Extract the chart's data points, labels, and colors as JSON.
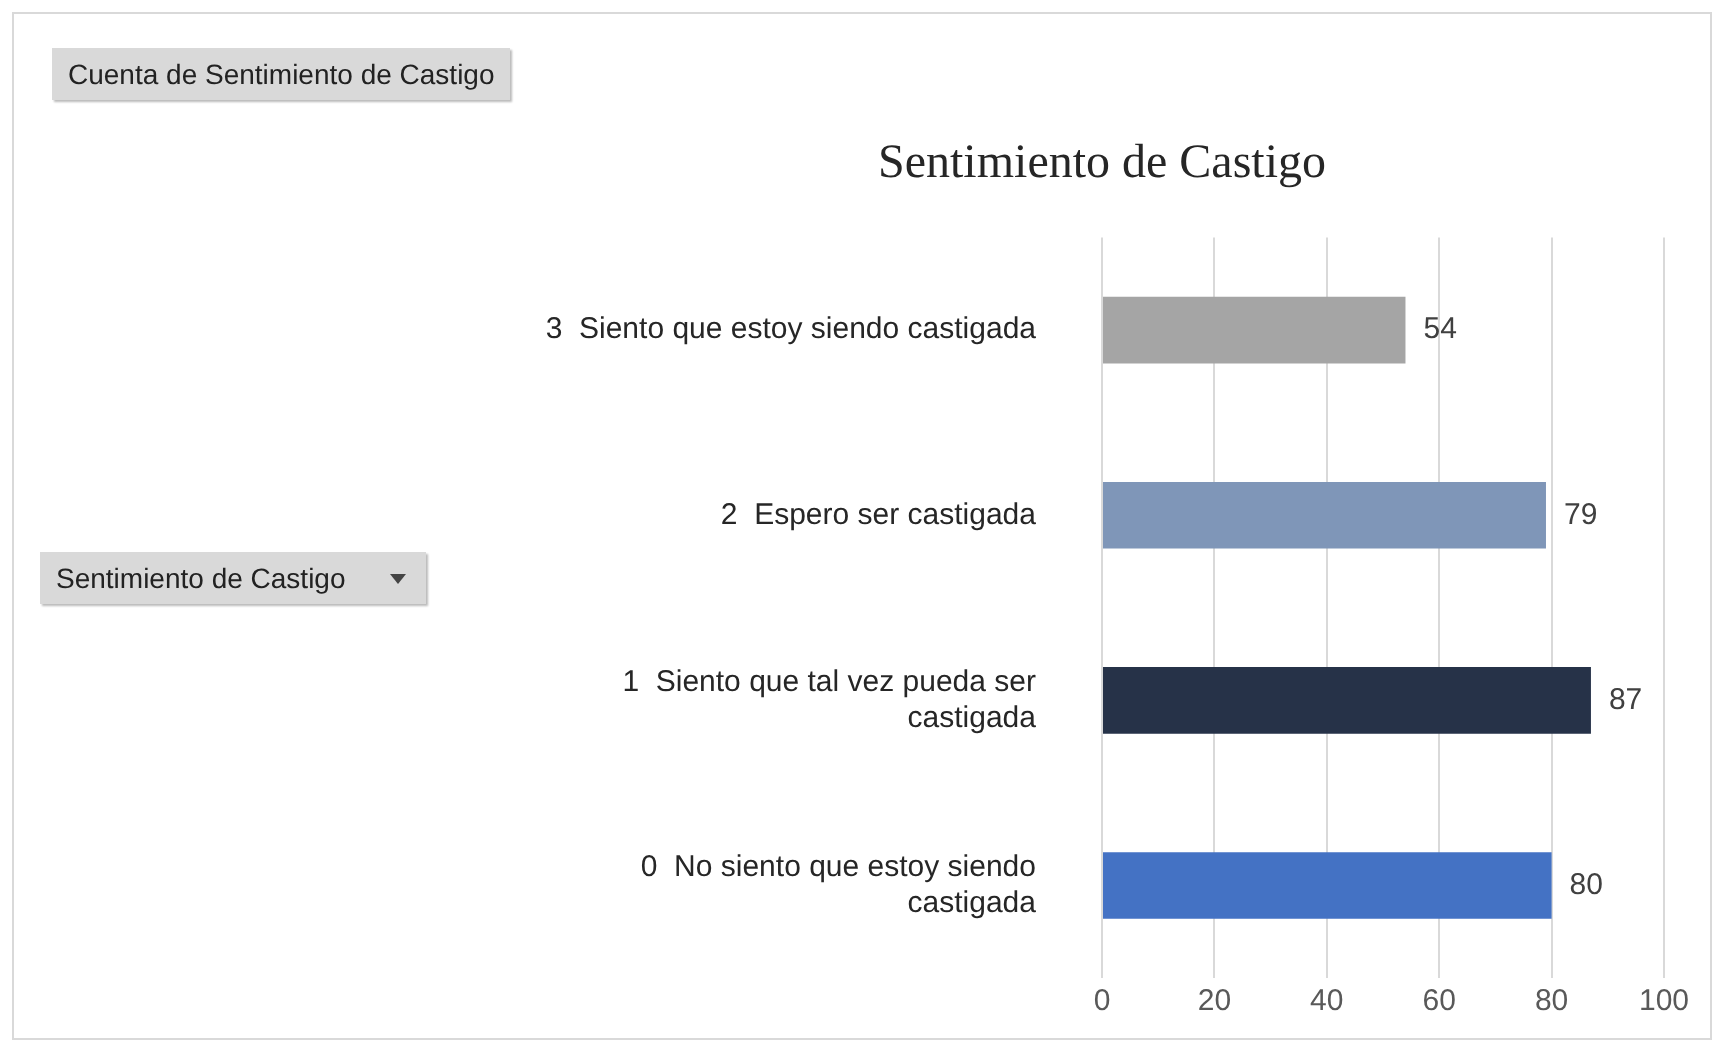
{
  "chart_data": {
    "type": "bar",
    "orientation": "horizontal",
    "title": "Sentimiento de Castigo",
    "categories": [
      "3  Siento que estoy siendo castigada",
      "2  Espero ser castigada",
      "1  Siento que tal vez pueda ser castigada",
      "0  No siento que estoy siendo castigada"
    ],
    "values": [
      54,
      79,
      87,
      80
    ],
    "colors": [
      "#a5a5a5",
      "#7f96b8",
      "#263248",
      "#4472c4"
    ],
    "xlim": [
      0,
      100
    ],
    "xticks": [
      0,
      20,
      40,
      60,
      80,
      100
    ],
    "grid": "x",
    "data_labels": true,
    "legend": false,
    "annotations": [
      "Cuenta de Sentimiento de Castigo",
      "Sentimiento de Castigo"
    ]
  }
}
